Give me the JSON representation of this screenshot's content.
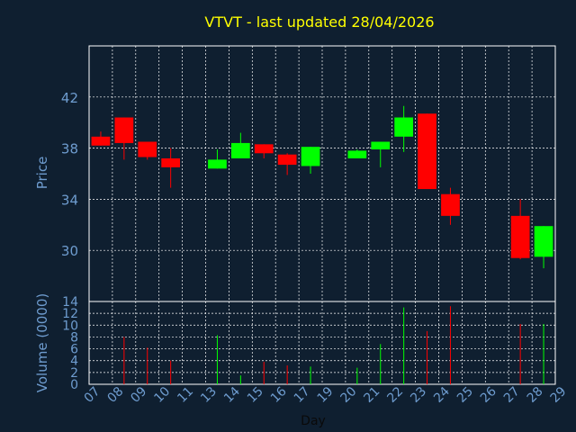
{
  "chart_data": {
    "type": "candlestick",
    "title": "VTVT - last updated 28/04/2026",
    "xlabel": "Day",
    "ylabel_price": "Price",
    "ylabel_volume": "Volume (0000)",
    "price_ylim": [
      26,
      46
    ],
    "price_ticks": [
      30,
      34,
      38,
      42
    ],
    "volume_ylim": [
      0,
      14
    ],
    "volume_ticks": [
      0,
      2,
      4,
      6,
      8,
      10,
      12,
      14
    ],
    "x_ticks": [
      "07",
      "08",
      "09",
      "10",
      "11",
      "13",
      "14",
      "15",
      "16",
      "17",
      "19",
      "20",
      "21",
      "22",
      "23",
      "24",
      "25",
      "26",
      "27",
      "28",
      "29"
    ],
    "grid": true,
    "colors": {
      "up": "#00ff00",
      "down": "#ff0000",
      "title": "#ffff00",
      "axis_text": "#6e9ccf",
      "background": "#0f1f30",
      "grid": "#ffffff"
    },
    "candles": [
      {
        "day": "07",
        "open": 38.9,
        "high": 39.3,
        "low": 38.2,
        "close": 38.2,
        "volume": 0
      },
      {
        "day": "08",
        "open": 40.4,
        "high": 40.4,
        "low": 37.1,
        "close": 38.4,
        "volume": 8.0
      },
      {
        "day": "09",
        "open": 38.5,
        "high": 38.5,
        "low": 37.1,
        "close": 37.3,
        "volume": 6.2
      },
      {
        "day": "10",
        "open": 37.2,
        "high": 38.0,
        "low": 34.9,
        "close": 36.5,
        "volume": 4.0
      },
      {
        "day": "13",
        "open": 36.4,
        "high": 37.9,
        "low": 36.4,
        "close": 37.1,
        "volume": 8.3
      },
      {
        "day": "14",
        "open": 37.2,
        "high": 39.2,
        "low": 37.2,
        "close": 38.4,
        "volume": 1.5
      },
      {
        "day": "15",
        "open": 38.3,
        "high": 38.3,
        "low": 37.2,
        "close": 37.6,
        "volume": 3.8
      },
      {
        "day": "16",
        "open": 37.5,
        "high": 37.6,
        "low": 35.9,
        "close": 36.7,
        "volume": 3.2
      },
      {
        "day": "17",
        "open": 36.6,
        "high": 38.1,
        "low": 36.0,
        "close": 38.1,
        "volume": 3.0
      },
      {
        "day": "20",
        "open": 37.2,
        "high": 37.9,
        "low": 37.2,
        "close": 37.8,
        "volume": 2.8
      },
      {
        "day": "21",
        "open": 37.9,
        "high": 38.5,
        "low": 36.5,
        "close": 38.5,
        "volume": 6.8
      },
      {
        "day": "22",
        "open": 38.9,
        "high": 41.3,
        "low": 37.7,
        "close": 40.4,
        "volume": 13.0
      },
      {
        "day": "23",
        "open": 40.7,
        "high": 40.7,
        "low": 34.8,
        "close": 34.8,
        "volume": 9.0
      },
      {
        "day": "24",
        "open": 34.4,
        "high": 34.9,
        "low": 32.0,
        "close": 32.7,
        "volume": 13.2
      },
      {
        "day": "27",
        "open": 32.7,
        "high": 34.0,
        "low": 29.3,
        "close": 29.4,
        "volume": 10.2
      },
      {
        "day": "28",
        "open": 29.5,
        "high": 31.9,
        "low": 28.6,
        "close": 31.9,
        "volume": 10.2
      }
    ]
  }
}
